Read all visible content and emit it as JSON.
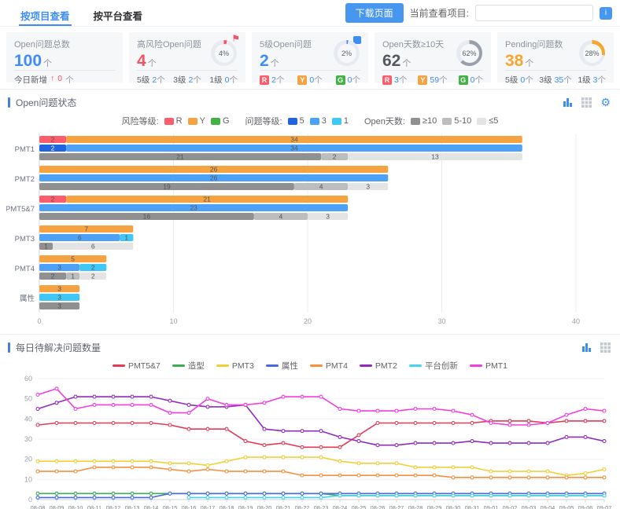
{
  "tabs": [
    {
      "label": "按项目查看",
      "active": true
    },
    {
      "label": "按平台查看",
      "active": false
    }
  ],
  "header": {
    "download_button": "下载页面",
    "current_project_label": "当前查看项目:",
    "project_input_value": "",
    "info_button": "i"
  },
  "kpi_cards": [
    {
      "title": "Open问题总数",
      "value": "100",
      "unit": "个",
      "value_color": "#3e8df5",
      "footer": {
        "label": "今日新增",
        "arrow": "↑",
        "value": "0",
        "unit": "个"
      }
    },
    {
      "title": "高风险Open问题",
      "value": "4",
      "unit": "个",
      "value_color": "#f55263",
      "donut": {
        "percent": 4,
        "label": "4%",
        "color": "#f55263"
      },
      "flag_color": "#f55263",
      "footer_items": [
        {
          "label": "5级",
          "value": "2",
          "unit": "个"
        },
        {
          "label": "3级",
          "value": "2",
          "unit": "个"
        },
        {
          "label": "1级",
          "value": "0",
          "unit": "个"
        }
      ]
    },
    {
      "title": "5级Open问题",
      "value": "2",
      "unit": "个",
      "value_color": "#3e8df5",
      "donut": {
        "percent": 2,
        "label": "2%",
        "color": "#3e8df5"
      },
      "footer_items": [
        {
          "badge": "R",
          "badge_color": "#fb5d6d",
          "value": "2",
          "unit": "个"
        },
        {
          "badge": "Y",
          "badge_color": "#f5a342",
          "value": "0",
          "unit": "个"
        },
        {
          "badge": "G",
          "badge_color": "#43b244",
          "value": "0",
          "unit": "个"
        }
      ]
    },
    {
      "title": "Open天数≥10天",
      "value": "62",
      "unit": "个",
      "value_color": "#54585f",
      "donut": {
        "percent": 62,
        "label": "62%",
        "color": "#98a0ab"
      },
      "footer_items": [
        {
          "badge": "R",
          "badge_color": "#fb5d6d",
          "value": "3",
          "unit": "个"
        },
        {
          "badge": "Y",
          "badge_color": "#f5a342",
          "value": "59",
          "unit": "个"
        },
        {
          "badge": "G",
          "badge_color": "#43b244",
          "value": "0",
          "unit": "个"
        }
      ]
    },
    {
      "title": "Pending问题数",
      "value": "38",
      "unit": "个",
      "value_color": "#f5a62c",
      "donut": {
        "percent": 28,
        "label": "28%",
        "color": "#f5a62c"
      },
      "footer_items": [
        {
          "label": "5级",
          "value": "0",
          "unit": "个"
        },
        {
          "label": "3级",
          "value": "35",
          "unit": "个"
        },
        {
          "label": "1级",
          "value": "3",
          "unit": "个"
        }
      ]
    }
  ],
  "sections": [
    {
      "title": "Open问题状态"
    },
    {
      "title": "每日待解决问题数量"
    }
  ],
  "bar_legend": {
    "groups": [
      {
        "label": "风险等级:",
        "items": [
          {
            "label": "R",
            "color": "#fb5d6d"
          },
          {
            "label": "Y",
            "color": "#f5a342"
          },
          {
            "label": "G",
            "color": "#43b244"
          }
        ]
      },
      {
        "label": "问题等级:",
        "items": [
          {
            "label": "5",
            "color": "#2064e0"
          },
          {
            "label": "3",
            "color": "#4da2f8"
          },
          {
            "label": "1",
            "color": "#3fc7f5"
          }
        ]
      },
      {
        "label": "Open天数:",
        "items": [
          {
            "label": "≥10",
            "color": "#909090"
          },
          {
            "label": "5-10",
            "color": "#bdbdbd"
          },
          {
            "label": "≤5",
            "color": "#e4e4e4"
          }
        ]
      }
    ]
  },
  "chart_data": [
    {
      "type": "bar",
      "title": "Open问题状态",
      "orientation": "horizontal",
      "xlim": [
        0,
        40
      ],
      "x_ticks": [
        0,
        10,
        20,
        30,
        40
      ],
      "legend_position": "top",
      "grid": true,
      "colors": {
        "risk": {
          "R": "#fb5d6d",
          "Y": "#f5a342",
          "G": "#43b244"
        },
        "level": {
          "5": "#2064e0",
          "3": "#4da2f8",
          "1": "#3fc7f5"
        },
        "days": {
          "≥10": "#909090",
          "5-10": "#bdbdbd",
          "≤5": "#e4e4e4"
        }
      },
      "rows": [
        {
          "category": "PMT1",
          "risk": [
            {
              "label": "R",
              "value": 2
            },
            {
              "label": "Y",
              "value": 34
            }
          ],
          "level": [
            {
              "label": "5",
              "value": 2
            },
            {
              "label": "3",
              "value": 34
            }
          ],
          "days": [
            {
              "label": "≥10",
              "value": 21
            },
            {
              "label": "5-10",
              "value": 2
            },
            {
              "label": "≤5",
              "value": 13
            }
          ]
        },
        {
          "category": "PMT2",
          "risk": [
            {
              "label": "Y",
              "value": 26
            }
          ],
          "level": [
            {
              "label": "3",
              "value": 26
            }
          ],
          "days": [
            {
              "label": "≥10",
              "value": 19
            },
            {
              "label": "5-10",
              "value": 4
            },
            {
              "label": "≤5",
              "value": 3
            }
          ]
        },
        {
          "category": "PMT5&7",
          "risk": [
            {
              "label": "R",
              "value": 2
            },
            {
              "label": "Y",
              "value": 21
            }
          ],
          "level": [
            {
              "label": "3",
              "value": 23
            }
          ],
          "days": [
            {
              "label": "≥10",
              "value": 16
            },
            {
              "label": "5-10",
              "value": 4
            },
            {
              "label": "≤5",
              "value": 3
            }
          ]
        },
        {
          "category": "PMT3",
          "risk": [
            {
              "label": "Y",
              "value": 7
            }
          ],
          "level": [
            {
              "label": "3",
              "value": 6
            },
            {
              "label": "1",
              "value": 1
            }
          ],
          "days": [
            {
              "label": "≥10",
              "value": 1
            },
            {
              "label": "≤5",
              "value": 6
            }
          ]
        },
        {
          "category": "PMT4",
          "risk": [
            {
              "label": "Y",
              "value": 5
            }
          ],
          "level": [
            {
              "label": "3",
              "value": 3
            },
            {
              "label": "1",
              "value": 2
            }
          ],
          "days": [
            {
              "label": "≥10",
              "value": 2
            },
            {
              "label": "5-10",
              "value": 1
            },
            {
              "label": "≤5",
              "value": 2
            }
          ]
        },
        {
          "category": "属性",
          "risk": [
            {
              "label": "Y",
              "value": 3
            }
          ],
          "level": [
            {
              "label": "1",
              "value": 3
            }
          ],
          "days": [
            {
              "label": "≥10",
              "value": 3
            }
          ]
        }
      ]
    },
    {
      "type": "line",
      "title": "每日待解决问题数量",
      "ylim": [
        0,
        60
      ],
      "y_ticks": [
        0,
        10,
        20,
        30,
        40,
        50,
        60
      ],
      "grid": true,
      "legend_position": "top",
      "x": [
        "08-08",
        "08-09",
        "08-10",
        "08-11",
        "08-12",
        "08-13",
        "08-14",
        "08-15",
        "08-16",
        "08-17",
        "08-18",
        "08-19",
        "08-20",
        "08-21",
        "08-22",
        "08-23",
        "08-24",
        "08-25",
        "08-26",
        "08-27",
        "08-28",
        "08-29",
        "08-30",
        "08-31",
        "09-01",
        "09-02",
        "09-03",
        "09-04",
        "09-05",
        "09-06",
        "09-07"
      ],
      "series": [
        {
          "name": "PMT5&7",
          "color": "#e23a57",
          "values": [
            37,
            38,
            38,
            38,
            38,
            38,
            38,
            37,
            35,
            35,
            35,
            29,
            27,
            28,
            26,
            26,
            26,
            32,
            38,
            38,
            38,
            38,
            38,
            38,
            39,
            39,
            39,
            38,
            39,
            39,
            39
          ]
        },
        {
          "name": "造型",
          "color": "#3fae53",
          "values": [
            3,
            3,
            3,
            3,
            3,
            3,
            3,
            3,
            3,
            3,
            3,
            3,
            3,
            3,
            3,
            3,
            2,
            2,
            2,
            2,
            2,
            2,
            2,
            2,
            2,
            2,
            2,
            2,
            2,
            2,
            2
          ]
        },
        {
          "name": "PMT3",
          "color": "#f2cf35",
          "values": [
            19,
            19,
            19,
            19,
            19,
            19,
            19,
            18,
            18,
            17,
            19,
            21,
            21,
            21,
            21,
            21,
            19,
            18,
            18,
            18,
            16,
            16,
            16,
            16,
            14,
            14,
            14,
            14,
            12,
            13,
            15
          ]
        },
        {
          "name": "属性",
          "color": "#4a69e0",
          "values": [
            1,
            1,
            1,
            1,
            1,
            1,
            1,
            3,
            3,
            3,
            3,
            3,
            3,
            3,
            3,
            3,
            3,
            3,
            3,
            3,
            3,
            3,
            3,
            3,
            3,
            3,
            3,
            3,
            3,
            3,
            3
          ]
        },
        {
          "name": "PMT4",
          "color": "#f78f3d",
          "values": [
            14,
            14,
            14,
            16,
            16,
            16,
            16,
            15,
            14,
            15,
            14,
            14,
            14,
            14,
            12,
            12,
            12,
            12,
            12,
            12,
            12,
            12,
            11,
            11,
            11,
            11,
            11,
            11,
            11,
            11,
            11
          ]
        },
        {
          "name": "PMT2",
          "color": "#8f2bbf",
          "values": [
            45,
            48,
            51,
            51,
            51,
            51,
            51,
            49,
            47,
            46,
            46,
            47,
            35,
            34,
            34,
            34,
            31,
            29,
            27,
            27,
            28,
            28,
            28,
            29,
            28,
            28,
            28,
            28,
            31,
            31,
            29
          ]
        },
        {
          "name": "平台创新",
          "color": "#45d4f0",
          "values": [
            null,
            null,
            null,
            null,
            null,
            null,
            null,
            null,
            1,
            1,
            1,
            1,
            1,
            1,
            1,
            1,
            2,
            2,
            2,
            2,
            2,
            2,
            2,
            2,
            2,
            2,
            2,
            2,
            2,
            2,
            2
          ]
        },
        {
          "name": "PMT1",
          "color": "#f23ddf",
          "values": [
            52,
            55,
            45,
            47,
            47,
            47,
            47,
            43,
            43,
            50,
            47,
            47,
            48,
            51,
            51,
            51,
            45,
            44,
            44,
            44,
            45,
            45,
            44,
            42,
            38,
            37,
            37,
            38,
            42,
            45,
            44
          ]
        }
      ]
    }
  ]
}
